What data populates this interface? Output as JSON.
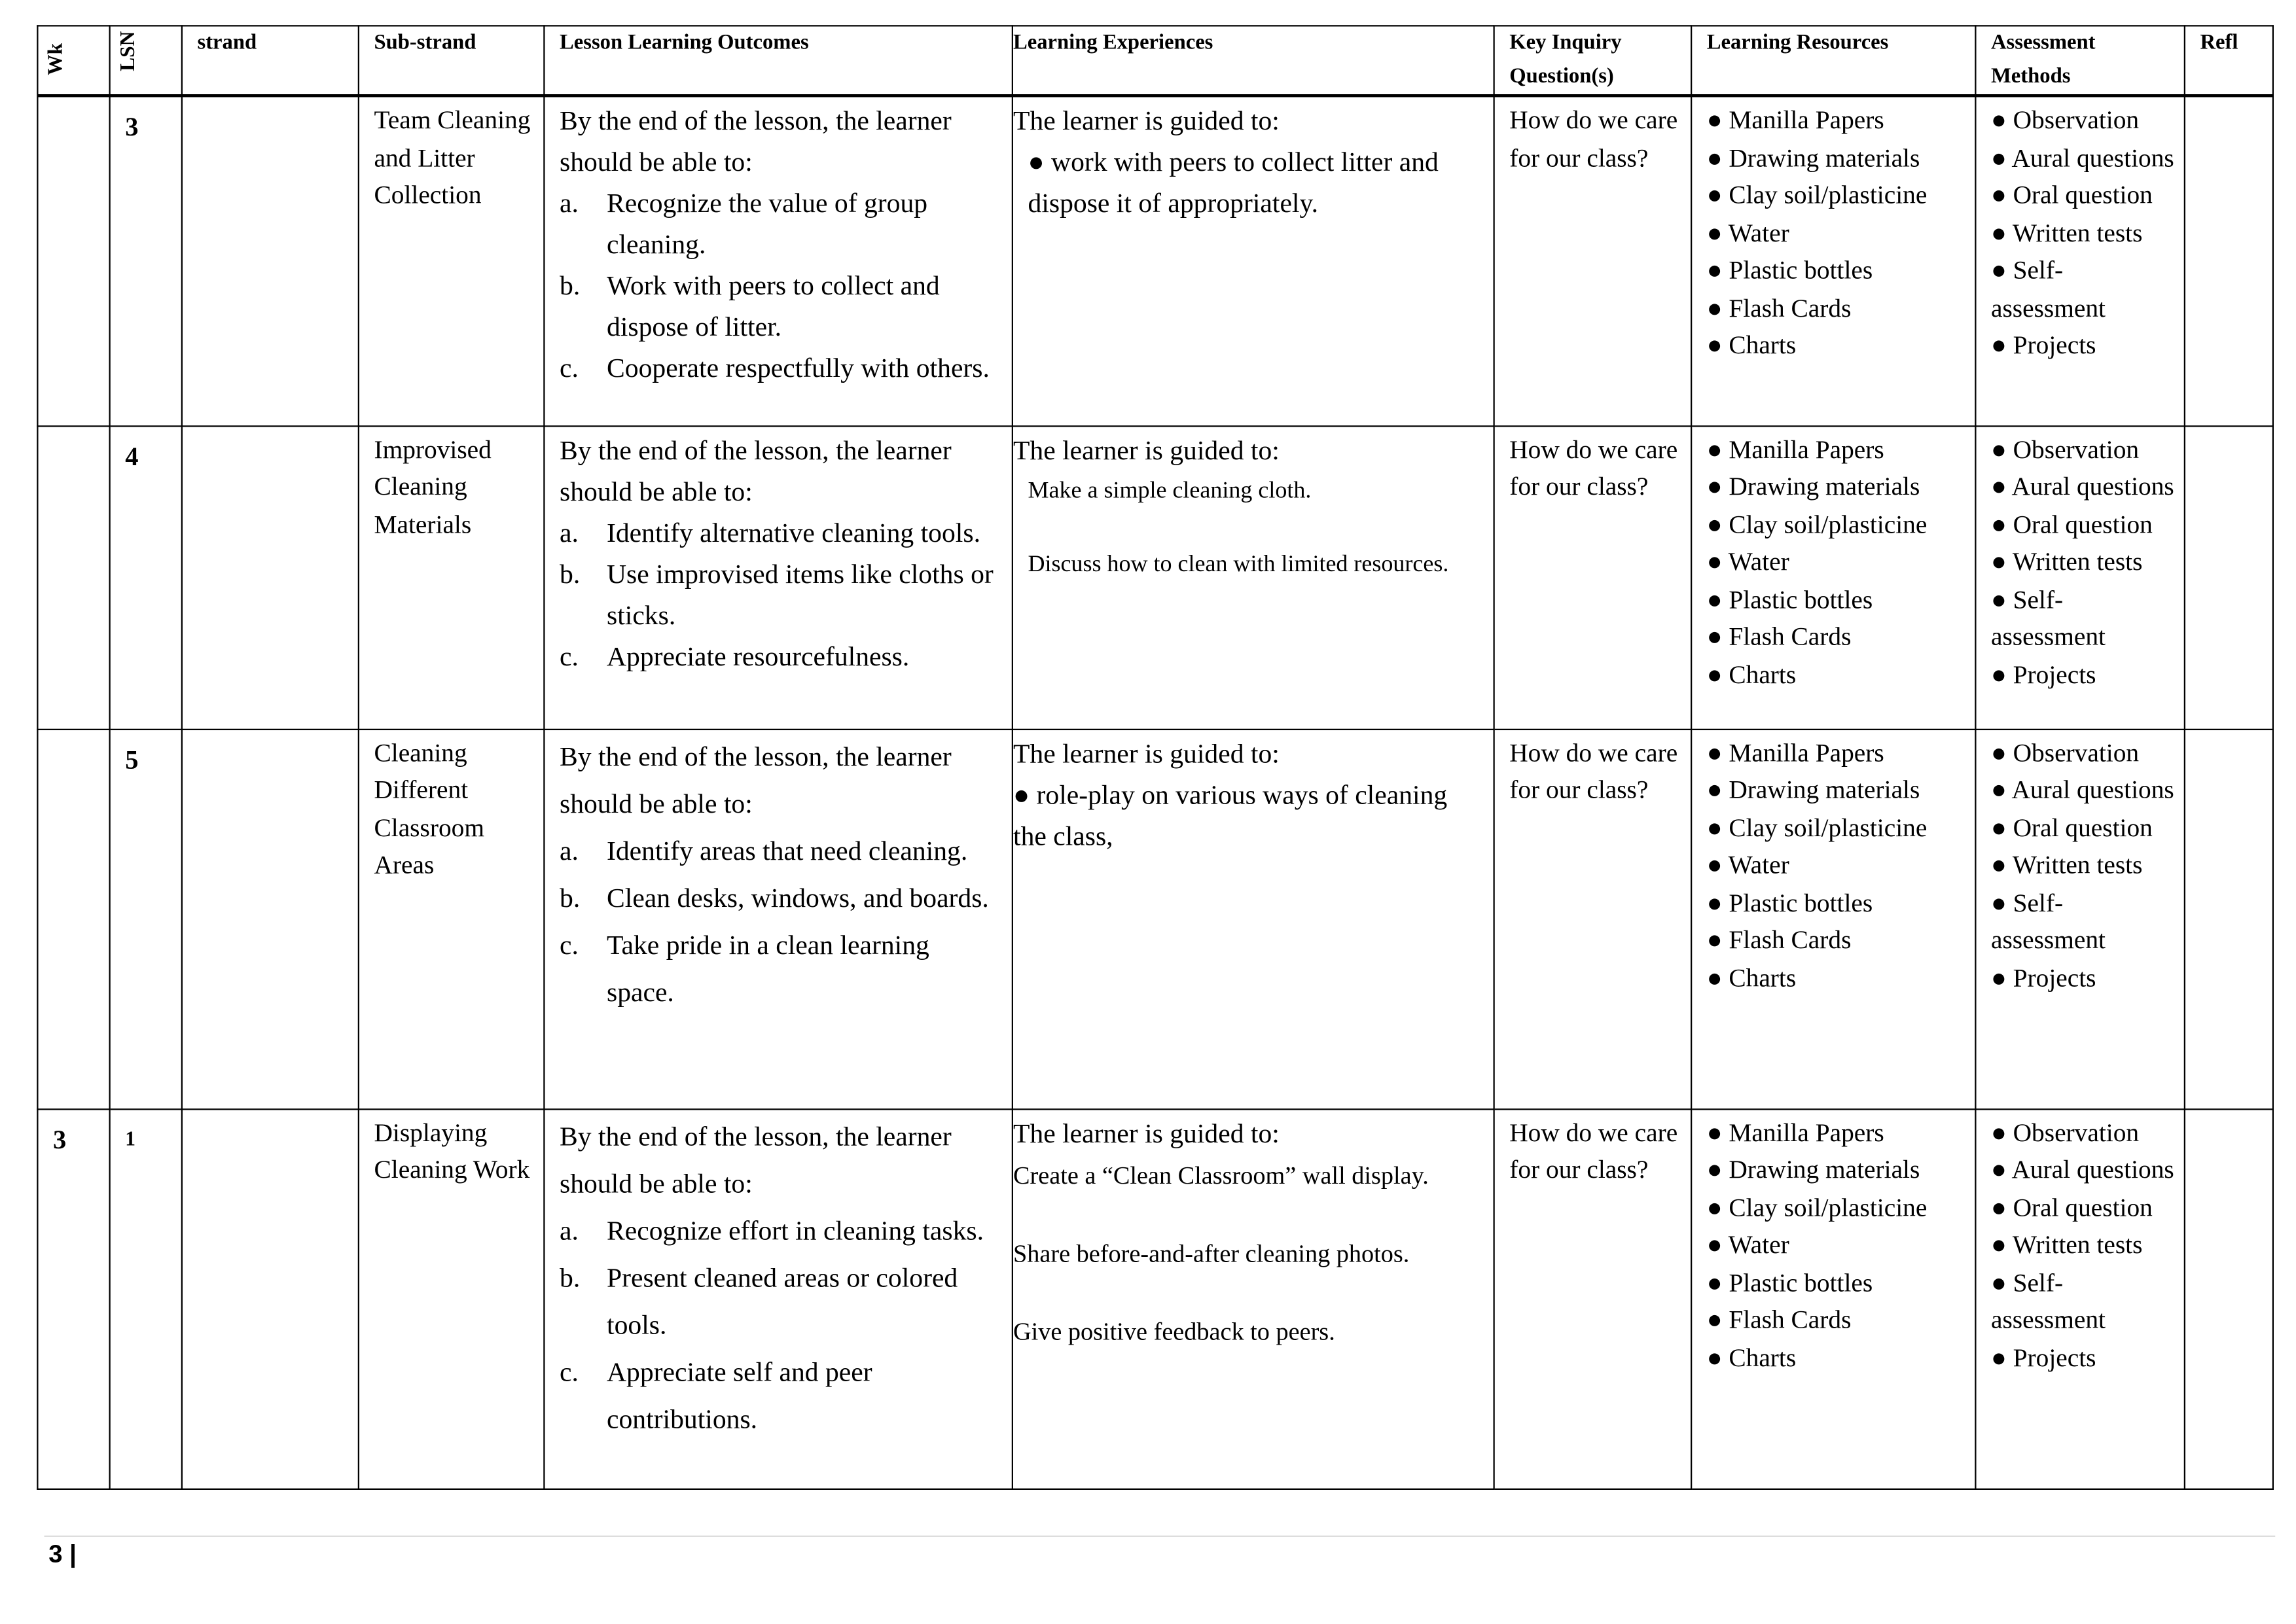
{
  "headers": {
    "wk": "Wk",
    "lsn": "LSN",
    "strand": "strand",
    "substrand": "Sub-strand",
    "outcomes": "Lesson Learning Outcomes",
    "experiences": "Learning Experiences",
    "inquiry": "Key Inquiry Question(s)",
    "resources": "Learning Resources",
    "assessment": "Assessment Methods",
    "reflection": "Refl"
  },
  "rows": [
    {
      "wk": "",
      "lsn": "3",
      "strand": "",
      "substrand": "Team Cleaning and Litter Collection",
      "outcomes_intro": "By the end of the lesson, the learner should be able to:",
      "outcomes": [
        {
          "l": "a.",
          "t": "Recognize the value of group cleaning."
        },
        {
          "l": "b.",
          "t": "Work with peers to collect and dispose of litter."
        },
        {
          "l": "c.",
          "t": "Cooperate respectfully with others."
        }
      ],
      "exp_intro": "The learner is guided to:",
      "experiences": [
        "● work with peers to collect litter and dispose it of appropriately."
      ],
      "inquiry": "How do we care for our class?"
    },
    {
      "wk": "",
      "lsn": "4",
      "strand": "",
      "substrand": "Improvised Cleaning Materials",
      "outcomes_intro": "By the end of the lesson, the learner should be able to:",
      "outcomes": [
        {
          "l": "a.",
          "t": "Identify alternative cleaning tools."
        },
        {
          "l": "b.",
          "t": "Use improvised items like cloths or sticks."
        },
        {
          "l": "c.",
          "t": "Appreciate resourcefulness."
        }
      ],
      "exp_intro": "The learner is guided to:",
      "experiences": [
        "Make a simple cleaning cloth.",
        "Discuss how to clean with limited resources."
      ],
      "inquiry": "How do we care for our class?"
    },
    {
      "wk": "",
      "lsn": "5",
      "strand": "",
      "substrand": "Cleaning Different Classroom Areas",
      "outcomes_intro": "By the end of the lesson, the learner should be able to:",
      "outcomes": [
        {
          "l": "a.",
          "t": "Identify areas that need cleaning."
        },
        {
          "l": "b.",
          "t": "Clean desks, windows, and boards."
        },
        {
          "l": "c.",
          "t": "Take pride in a clean learning space."
        }
      ],
      "exp_intro": "The learner is guided to:",
      "experiences": [
        "● role-play on various ways of cleaning the class,"
      ],
      "inquiry": "How do we care for our class?"
    },
    {
      "wk": "3",
      "lsn": "1",
      "strand": "",
      "substrand": "Displaying Cleaning Work",
      "outcomes_intro": "By the end of the lesson, the learner should be able to:",
      "outcomes": [
        {
          "l": "a.",
          "t": "Recognize effort in cleaning tasks."
        },
        {
          "l": "b.",
          "t": "Present cleaned areas or colored tools."
        },
        {
          "l": "c.",
          "t": "Appreciate self and peer contributions."
        }
      ],
      "exp_intro": "The learner is guided to:",
      "experiences": [
        "Create a “Clean Classroom” wall display.",
        "Share before-and-after cleaning photos.",
        "Give positive feedback to peers."
      ],
      "inquiry": "How do we care for our class?"
    }
  ],
  "resources": [
    "● Manilla Papers",
    "● Drawing materials",
    "● Clay soil/plasticine",
    "● Water",
    "● Plastic bottles",
    "● Flash Cards",
    "● Charts"
  ],
  "assessment": [
    "● Observation",
    "● Aural questions",
    "● Oral question",
    "● Written tests",
    "● Self-assessment",
    "● Projects"
  ],
  "footer": {
    "page": "3 |"
  }
}
